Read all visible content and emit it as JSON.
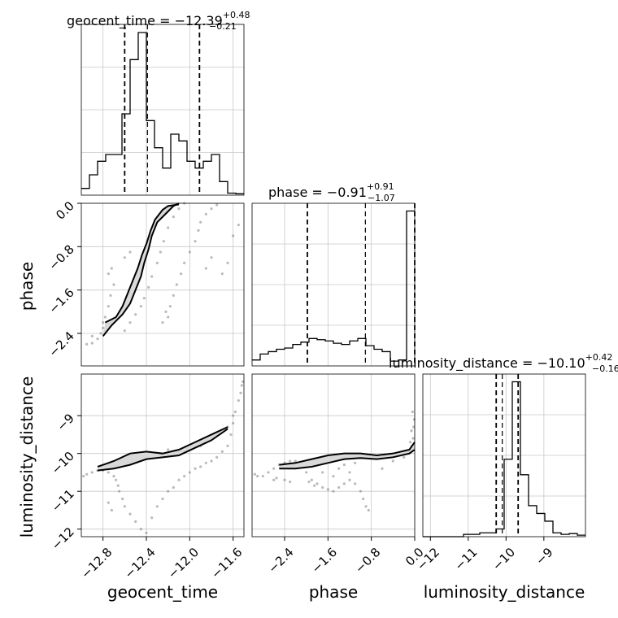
{
  "chart_data": {
    "type": "corner",
    "parameters": [
      "geocent_time",
      "phase",
      "luminosity_distance"
    ],
    "axis_labels": [
      "geocent_time",
      "phase",
      "luminosity_distance"
    ],
    "ranges": {
      "geocent_time": [
        -13.0,
        -11.5
      ],
      "phase": [
        -3.0,
        0.0
      ],
      "luminosity_distance": [
        -12.2,
        -7.9
      ]
    },
    "ticks": {
      "geocent_time": [
        -12.8,
        -12.4,
        -12.0,
        -11.6
      ],
      "phase": [
        -2.4,
        -1.6,
        -0.8,
        0.0
      ],
      "luminosity_distance": [
        -12,
        -11,
        -10,
        -9
      ]
    },
    "tick_labels": {
      "geocent_time": [
        "−12.8",
        "−12.4",
        "−12.0",
        "−11.6"
      ],
      "phase": [
        "−2.4",
        "−1.6",
        "−0.8",
        "0.0"
      ],
      "luminosity_distance": [
        "−12",
        "−11",
        "−10",
        "−9"
      ]
    },
    "titles": [
      {
        "param": "geocent_time",
        "text": "geocent_time = −12.39",
        "sup": "+0.48",
        "sub": "−0.21"
      },
      {
        "param": "phase",
        "text": "phase = −0.91",
        "sup": "+0.91",
        "sub": "−1.07"
      },
      {
        "param": "luminosity_distance",
        "text": "luminosity_distance = −10.10",
        "sup": "+0.42",
        "sub": "−0.16"
      }
    ],
    "quantiles": {
      "geocent_time": [
        -12.6,
        -12.39,
        -11.91
      ],
      "phase": [
        -1.98,
        -0.91,
        0.0
      ],
      "luminosity_distance": [
        -10.26,
        -10.1,
        -9.68
      ]
    },
    "histograms": {
      "geocent_time": {
        "range": [
          -13.0,
          -11.5
        ],
        "counts": [
          1,
          3,
          5,
          6,
          6,
          12,
          20,
          24,
          11,
          7,
          4,
          9,
          8,
          5,
          4,
          5,
          6,
          2,
          0.3,
          0.2
        ]
      },
      "phase": {
        "range": [
          -3.0,
          0.0
        ],
        "counts": [
          0.5,
          1,
          1.2,
          1.4,
          1.5,
          1.8,
          2,
          2.3,
          2.2,
          2.1,
          1.9,
          1.8,
          2.1,
          2.3,
          1.7,
          1.4,
          1.2,
          0.4,
          0.5,
          13
        ]
      },
      "luminosity_distance": {
        "range": [
          -12.2,
          -7.9
        ],
        "counts": [
          0,
          0,
          0,
          0,
          0,
          0.3,
          0.3,
          0.5,
          0.5,
          1,
          10,
          20,
          8,
          4,
          3,
          2,
          0.5,
          0.3,
          0.4,
          0.2
        ]
      }
    },
    "point_clouds": {
      "phase_vs_geocent_time": [
        [
          -12.95,
          -2.6
        ],
        [
          -12.9,
          -2.58
        ],
        [
          -12.85,
          -2.5
        ],
        [
          -12.8,
          -2.3
        ],
        [
          -12.78,
          -2.1
        ],
        [
          -12.75,
          -1.9
        ],
        [
          -12.73,
          -1.7
        ],
        [
          -12.7,
          -1.5
        ],
        [
          -12.75,
          -1.3
        ],
        [
          -12.72,
          -1.2
        ],
        [
          -12.6,
          -1.0
        ],
        [
          -12.55,
          -0.9
        ],
        [
          -12.82,
          -2.4
        ],
        [
          -12.9,
          -2.45
        ],
        [
          -12.8,
          -2.2
        ],
        [
          -12.6,
          -2.35
        ],
        [
          -12.55,
          -2.2
        ],
        [
          -12.5,
          -2.05
        ],
        [
          -12.45,
          -1.9
        ],
        [
          -12.42,
          -1.75
        ],
        [
          -12.38,
          -1.55
        ],
        [
          -12.35,
          -1.35
        ],
        [
          -12.3,
          -1.1
        ],
        [
          -12.27,
          -0.9
        ],
        [
          -12.24,
          -0.7
        ],
        [
          -12.2,
          -0.45
        ],
        [
          -12.15,
          -0.25
        ],
        [
          -12.1,
          -0.1
        ],
        [
          -12.05,
          0.0
        ],
        [
          -12.2,
          -2.1
        ],
        [
          -12.18,
          -1.9
        ],
        [
          -12.15,
          -1.7
        ],
        [
          -12.12,
          -1.5
        ],
        [
          -12.08,
          -1.3
        ],
        [
          -12.05,
          -1.1
        ],
        [
          -12.0,
          -0.9
        ],
        [
          -11.95,
          -0.7
        ],
        [
          -11.92,
          -0.5
        ],
        [
          -11.9,
          -0.35
        ],
        [
          -11.85,
          -0.2
        ],
        [
          -11.8,
          -0.1
        ],
        [
          -11.75,
          -0.03
        ],
        [
          -12.25,
          -2.2
        ],
        [
          -12.22,
          -2.0
        ],
        [
          -11.85,
          -1.2
        ],
        [
          -11.8,
          -1.0
        ],
        [
          -11.6,
          -0.6
        ],
        [
          -11.55,
          -0.4
        ],
        [
          -11.7,
          -1.3
        ],
        [
          -11.65,
          -1.1
        ]
      ],
      "luminosity_distance_vs_geocent_time": [
        [
          -12.98,
          -10.6
        ],
        [
          -12.95,
          -10.55
        ],
        [
          -12.9,
          -10.5
        ],
        [
          -12.85,
          -10.45
        ],
        [
          -12.8,
          -10.45
        ],
        [
          -12.75,
          -10.5
        ],
        [
          -12.7,
          -10.6
        ],
        [
          -12.68,
          -10.7
        ],
        [
          -12.66,
          -10.85
        ],
        [
          -12.65,
          -11.0
        ],
        [
          -12.62,
          -11.2
        ],
        [
          -12.6,
          -11.4
        ],
        [
          -12.55,
          -11.6
        ],
        [
          -12.5,
          -11.8
        ],
        [
          -12.45,
          -12.0
        ],
        [
          -12.4,
          -12.1
        ],
        [
          -12.35,
          -11.7
        ],
        [
          -12.3,
          -11.4
        ],
        [
          -12.25,
          -11.2
        ],
        [
          -12.2,
          -11.0
        ],
        [
          -12.15,
          -10.9
        ],
        [
          -12.1,
          -10.7
        ],
        [
          -12.05,
          -10.6
        ],
        [
          -12.0,
          -10.5
        ],
        [
          -11.95,
          -10.4
        ],
        [
          -11.9,
          -10.35
        ],
        [
          -11.85,
          -10.25
        ],
        [
          -11.8,
          -10.2
        ],
        [
          -11.75,
          -10.1
        ],
        [
          -11.7,
          -9.95
        ],
        [
          -11.65,
          -9.8
        ],
        [
          -11.62,
          -9.5
        ],
        [
          -11.6,
          -9.2
        ],
        [
          -11.58,
          -8.9
        ],
        [
          -11.55,
          -8.6
        ],
        [
          -11.53,
          -8.4
        ],
        [
          -11.52,
          -8.2
        ],
        [
          -11.51,
          -8.1
        ],
        [
          -11.6,
          -9.0
        ],
        [
          -11.65,
          -9.3
        ],
        [
          -11.7,
          -9.4
        ],
        [
          -12.6,
          -10.2
        ],
        [
          -12.55,
          -10.1
        ],
        [
          -12.5,
          -10.0
        ],
        [
          -12.2,
          -9.9
        ],
        [
          -12.25,
          -10.05
        ],
        [
          -11.9,
          -9.8
        ],
        [
          -11.8,
          -9.6
        ],
        [
          -12.75,
          -11.3
        ],
        [
          -12.72,
          -11.5
        ]
      ],
      "luminosity_distance_vs_phase": [
        [
          -2.95,
          -10.55
        ],
        [
          -2.9,
          -10.6
        ],
        [
          -2.8,
          -10.6
        ],
        [
          -2.7,
          -10.5
        ],
        [
          -2.6,
          -10.4
        ],
        [
          -2.5,
          -10.3
        ],
        [
          -2.4,
          -10.25
        ],
        [
          -2.3,
          -10.2
        ],
        [
          -2.2,
          -10.2
        ],
        [
          -2.1,
          -10.35
        ],
        [
          -2.0,
          -10.5
        ],
        [
          -1.9,
          -10.7
        ],
        [
          -1.8,
          -10.8
        ],
        [
          -1.7,
          -10.9
        ],
        [
          -1.6,
          -10.95
        ],
        [
          -1.5,
          -11.0
        ],
        [
          -1.4,
          -10.9
        ],
        [
          -1.3,
          -10.8
        ],
        [
          -1.2,
          -10.7
        ],
        [
          -1.1,
          -10.8
        ],
        [
          -1.0,
          -11.0
        ],
        [
          -0.95,
          -11.2
        ],
        [
          -0.9,
          -11.4
        ],
        [
          -0.85,
          -11.5
        ],
        [
          -2.4,
          -10.7
        ],
        [
          -2.3,
          -10.75
        ],
        [
          -1.5,
          -10.6
        ],
        [
          -1.2,
          -10.5
        ],
        [
          -0.6,
          -10.4
        ],
        [
          -0.4,
          -10.2
        ],
        [
          -0.2,
          -10.1
        ],
        [
          -0.1,
          -10.0
        ],
        [
          -0.05,
          -9.8
        ],
        [
          -0.03,
          -9.6
        ],
        [
          -0.02,
          -9.3
        ],
        [
          -0.01,
          -9.1
        ],
        [
          -0.04,
          -8.9
        ],
        [
          -0.06,
          -9.4
        ],
        [
          -0.08,
          -9.7
        ],
        [
          -0.5,
          -10.1
        ],
        [
          -2.6,
          -10.7
        ],
        [
          -2.55,
          -10.65
        ],
        [
          -1.95,
          -10.75
        ],
        [
          -1.85,
          -10.85
        ],
        [
          -1.7,
          -10.5
        ],
        [
          -1.4,
          -10.4
        ],
        [
          -1.3,
          -10.3
        ],
        [
          -1.1,
          -10.25
        ]
      ]
    },
    "contours": {
      "phase_vs_geocent_time": [
        [
          [
            -12.8,
            -2.45
          ],
          [
            -12.72,
            -2.25
          ],
          [
            -12.62,
            -2.05
          ],
          [
            -12.55,
            -1.85
          ],
          [
            -12.5,
            -1.6
          ],
          [
            -12.45,
            -1.35
          ],
          [
            -12.42,
            -1.1
          ],
          [
            -12.38,
            -0.85
          ],
          [
            -12.35,
            -0.6
          ],
          [
            -12.3,
            -0.35
          ],
          [
            -12.2,
            -0.15
          ],
          [
            -12.15,
            -0.05
          ],
          [
            -12.1,
            0.0
          ]
        ],
        [
          [
            -12.78,
            -2.2
          ],
          [
            -12.68,
            -2.1
          ],
          [
            -12.62,
            -1.9
          ],
          [
            -12.58,
            -1.7
          ],
          [
            -12.53,
            -1.45
          ],
          [
            -12.48,
            -1.2
          ],
          [
            -12.44,
            -0.95
          ],
          [
            -12.4,
            -0.75
          ],
          [
            -12.36,
            -0.5
          ],
          [
            -12.32,
            -0.3
          ],
          [
            -12.25,
            -0.12
          ],
          [
            -12.2,
            -0.05
          ],
          [
            -12.1,
            -0.02
          ]
        ]
      ],
      "luminosity_distance_vs_geocent_time": [
        [
          [
            -12.85,
            -10.35
          ],
          [
            -12.7,
            -10.2
          ],
          [
            -12.55,
            -10.0
          ],
          [
            -12.4,
            -9.95
          ],
          [
            -12.25,
            -10.0
          ],
          [
            -12.1,
            -9.9
          ],
          [
            -11.95,
            -9.7
          ],
          [
            -11.8,
            -9.5
          ],
          [
            -11.65,
            -9.3
          ]
        ],
        [
          [
            -12.85,
            -10.45
          ],
          [
            -12.7,
            -10.4
          ],
          [
            -12.55,
            -10.3
          ],
          [
            -12.4,
            -10.15
          ],
          [
            -12.25,
            -10.1
          ],
          [
            -12.1,
            -10.05
          ],
          [
            -11.95,
            -9.85
          ],
          [
            -11.8,
            -9.65
          ],
          [
            -11.65,
            -9.35
          ]
        ]
      ],
      "luminosity_distance_vs_phase": [
        [
          [
            -2.5,
            -10.3
          ],
          [
            -2.2,
            -10.25
          ],
          [
            -1.9,
            -10.15
          ],
          [
            -1.6,
            -10.05
          ],
          [
            -1.3,
            -10.0
          ],
          [
            -1.0,
            -10.0
          ],
          [
            -0.7,
            -10.05
          ],
          [
            -0.4,
            -10.0
          ],
          [
            -0.1,
            -9.9
          ],
          [
            0.0,
            -9.7
          ]
        ],
        [
          [
            -2.5,
            -10.4
          ],
          [
            -2.2,
            -10.4
          ],
          [
            -1.9,
            -10.35
          ],
          [
            -1.6,
            -10.25
          ],
          [
            -1.3,
            -10.15
          ],
          [
            -1.0,
            -10.12
          ],
          [
            -0.7,
            -10.15
          ],
          [
            -0.4,
            -10.1
          ],
          [
            -0.1,
            -10.0
          ],
          [
            0.0,
            -9.9
          ]
        ]
      ]
    },
    "grid": true
  }
}
